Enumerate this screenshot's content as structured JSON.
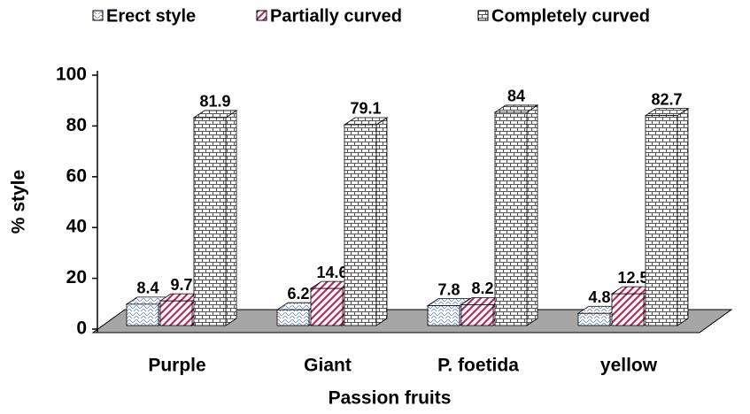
{
  "chart_data": {
    "type": "bar3d",
    "x_label": "Passion fruits",
    "y_label": "% style",
    "categories": [
      "Purple",
      "Giant",
      "P. foetida",
      "yellow"
    ],
    "series": [
      {
        "name": "Erect style",
        "color": "#5a7fd0",
        "values": [
          8.4,
          6.2,
          7.8,
          4.8
        ]
      },
      {
        "name": "Partially curved",
        "color": "#b0305a",
        "values": [
          9.7,
          14.6,
          8.2,
          12.5
        ]
      },
      {
        "name": "Completely curved",
        "color": "#555555",
        "values": [
          81.9,
          79.1,
          84,
          82.7
        ]
      }
    ],
    "ylim": [
      0,
      100
    ],
    "yticks": [
      0,
      20,
      40,
      60,
      80,
      100
    ],
    "legend": "top"
  }
}
